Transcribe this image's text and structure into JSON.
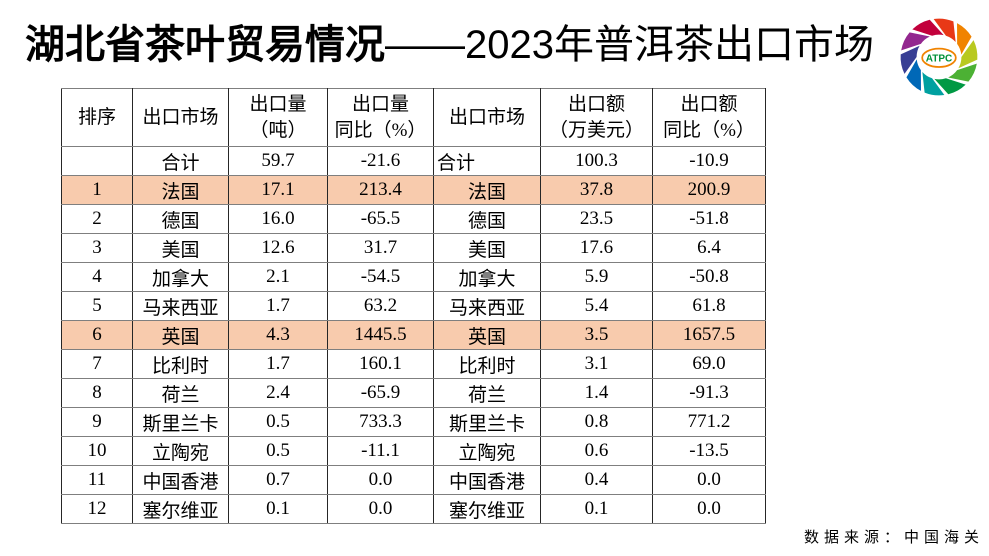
{
  "title": {
    "bold": "湖北省茶叶贸易情况",
    "regular": "——2023年普洱茶出口市场"
  },
  "logo": {
    "text": "ATPC",
    "text_color": "#00913A",
    "ellipse_color": "#F08300",
    "ring_colors": [
      "#E83817",
      "#F08300",
      "#B8C920",
      "#4CB134",
      "#009944",
      "#00A0A0",
      "#0068B7",
      "#383E94",
      "#93278F",
      "#C2003C"
    ]
  },
  "table": {
    "highlight_color": "#F8CBAD",
    "headers": [
      {
        "line1": "排序",
        "line2": ""
      },
      {
        "line1": "出口市场",
        "line2": ""
      },
      {
        "line1": "出口量",
        "line2": "（吨）"
      },
      {
        "line1": "出口量",
        "line2": "同比（%）"
      },
      {
        "line1": "出口市场",
        "line2": ""
      },
      {
        "line1": "出口额",
        "line2": "（万美元）"
      },
      {
        "line1": "出口额",
        "line2": "同比（%）"
      }
    ],
    "rows": [
      {
        "rank": "",
        "market": "合计",
        "volume": "59.7",
        "volume_yoy": "-21.6",
        "market2": "合计",
        "value": "100.3",
        "value_yoy": "-10.9",
        "highlight": false,
        "market2_align": "left"
      },
      {
        "rank": "1",
        "market": "法国",
        "volume": "17.1",
        "volume_yoy": "213.4",
        "market2": "法国",
        "value": "37.8",
        "value_yoy": "200.9",
        "highlight": true,
        "market2_align": "center"
      },
      {
        "rank": "2",
        "market": "德国",
        "volume": "16.0",
        "volume_yoy": "-65.5",
        "market2": "德国",
        "value": "23.5",
        "value_yoy": "-51.8",
        "highlight": false,
        "market2_align": "center"
      },
      {
        "rank": "3",
        "market": "美国",
        "volume": "12.6",
        "volume_yoy": "31.7",
        "market2": "美国",
        "value": "17.6",
        "value_yoy": "6.4",
        "highlight": false,
        "market2_align": "center"
      },
      {
        "rank": "4",
        "market": "加拿大",
        "volume": "2.1",
        "volume_yoy": "-54.5",
        "market2": "加拿大",
        "value": "5.9",
        "value_yoy": "-50.8",
        "highlight": false,
        "market2_align": "center"
      },
      {
        "rank": "5",
        "market": "马来西亚",
        "volume": "1.7",
        "volume_yoy": "63.2",
        "market2": "马来西亚",
        "value": "5.4",
        "value_yoy": "61.8",
        "highlight": false,
        "market2_align": "center"
      },
      {
        "rank": "6",
        "market": "英国",
        "volume": "4.3",
        "volume_yoy": "1445.5",
        "market2": "英国",
        "value": "3.5",
        "value_yoy": "1657.5",
        "highlight": true,
        "market2_align": "center"
      },
      {
        "rank": "7",
        "market": "比利时",
        "volume": "1.7",
        "volume_yoy": "160.1",
        "market2": "比利时",
        "value": "3.1",
        "value_yoy": "69.0",
        "highlight": false,
        "market2_align": "center"
      },
      {
        "rank": "8",
        "market": "荷兰",
        "volume": "2.4",
        "volume_yoy": "-65.9",
        "market2": "荷兰",
        "value": "1.4",
        "value_yoy": "-91.3",
        "highlight": false,
        "market2_align": "center"
      },
      {
        "rank": "9",
        "market": "斯里兰卡",
        "volume": "0.5",
        "volume_yoy": "733.3",
        "market2": "斯里兰卡",
        "value": "0.8",
        "value_yoy": "771.2",
        "highlight": false,
        "market2_align": "center"
      },
      {
        "rank": "10",
        "market": "立陶宛",
        "volume": "0.5",
        "volume_yoy": "-11.1",
        "market2": "立陶宛",
        "value": "0.6",
        "value_yoy": "-13.5",
        "highlight": false,
        "market2_align": "center"
      },
      {
        "rank": "11",
        "market": "中国香港",
        "volume": "0.7",
        "volume_yoy": "0.0",
        "market2": "中国香港",
        "value": "0.4",
        "value_yoy": "0.0",
        "highlight": false,
        "market2_align": "center"
      },
      {
        "rank": "12",
        "market": "塞尔维亚",
        "volume": "0.1",
        "volume_yoy": "0.0",
        "market2": "塞尔维亚",
        "value": "0.1",
        "value_yoy": "0.0",
        "highlight": false,
        "market2_align": "center"
      }
    ]
  },
  "footer": {
    "source": "数据来源：中国海关"
  }
}
